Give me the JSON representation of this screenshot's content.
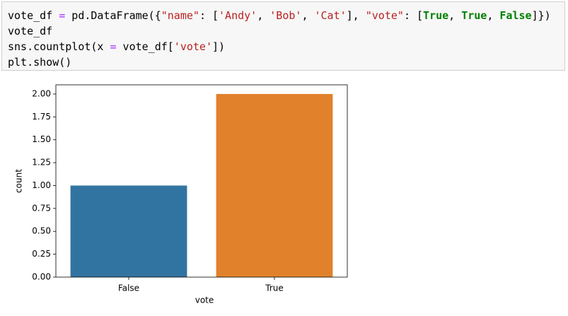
{
  "code": {
    "lines": [
      [
        {
          "text": "vote_df ",
          "color": "#000000"
        },
        {
          "text": "=",
          "color": "#aa22ff"
        },
        {
          "text": " pd.DataFrame({",
          "color": "#000000"
        },
        {
          "text": "\"name\"",
          "color": "#ba2121"
        },
        {
          "text": ": [",
          "color": "#000000"
        },
        {
          "text": "'Andy'",
          "color": "#ba2121"
        },
        {
          "text": ", ",
          "color": "#000000"
        },
        {
          "text": "'Bob'",
          "color": "#ba2121"
        },
        {
          "text": ", ",
          "color": "#000000"
        },
        {
          "text": "'Cat'",
          "color": "#ba2121"
        },
        {
          "text": "], ",
          "color": "#000000"
        },
        {
          "text": "\"vote\"",
          "color": "#ba2121"
        },
        {
          "text": ": [",
          "color": "#000000"
        },
        {
          "text": "True",
          "color": "#008000",
          "bold": true
        },
        {
          "text": ", ",
          "color": "#000000"
        },
        {
          "text": "True",
          "color": "#008000",
          "bold": true
        },
        {
          "text": ", ",
          "color": "#000000"
        },
        {
          "text": "False",
          "color": "#008000",
          "bold": true
        },
        {
          "text": "]})",
          "color": "#000000"
        }
      ],
      [
        {
          "text": "vote_df",
          "color": "#000000"
        }
      ],
      [
        {
          "text": "sns.countplot(x ",
          "color": "#000000"
        },
        {
          "text": "=",
          "color": "#aa22ff"
        },
        {
          "text": " vote_df[",
          "color": "#000000"
        },
        {
          "text": "'vote'",
          "color": "#ba2121"
        },
        {
          "text": "])",
          "color": "#000000"
        }
      ],
      [
        {
          "text": "plt.show()",
          "color": "#000000"
        }
      ]
    ]
  },
  "chart_data": {
    "type": "bar",
    "categories": [
      "False",
      "True"
    ],
    "values": [
      1,
      2
    ],
    "colors": [
      "#3274a1",
      "#e1812c"
    ],
    "xlabel": "vote",
    "ylabel": "count",
    "ylim": [
      0,
      2.1
    ],
    "yticks": [
      {
        "value": 0,
        "label": "0.00"
      },
      {
        "value": 0.25,
        "label": "0.25"
      },
      {
        "value": 0.5,
        "label": "0.50"
      },
      {
        "value": 0.75,
        "label": "0.75"
      },
      {
        "value": 1,
        "label": "1.00"
      },
      {
        "value": 1.25,
        "label": "1.25"
      },
      {
        "value": 1.5,
        "label": "1.50"
      },
      {
        "value": 1.75,
        "label": "1.75"
      },
      {
        "value": 2,
        "label": "2.00"
      }
    ]
  }
}
